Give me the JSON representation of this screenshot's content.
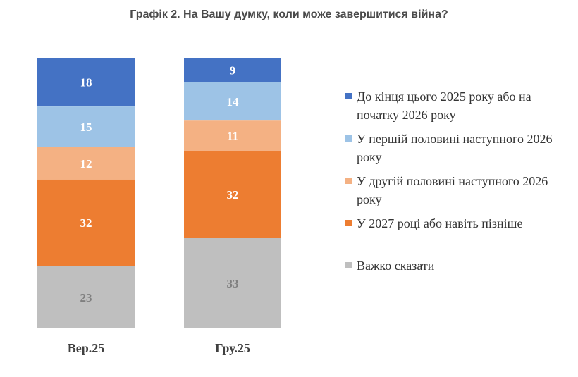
{
  "title": "Графік 2. На Вашу думку, коли може завершитися війна?",
  "chart_data": {
    "type": "bar",
    "stacked": true,
    "categories": [
      "Вер.25",
      "Гру.25"
    ],
    "series": [
      {
        "name": "До кінця цього 2025 року або на початку 2026 року",
        "values": [
          18,
          9
        ],
        "color": "#4472c4",
        "label_color": "#ffffff"
      },
      {
        "name": "У першій половині наступного 2026 року",
        "values": [
          15,
          14
        ],
        "color": "#9dc3e6",
        "label_color": "#ffffff"
      },
      {
        "name": "У другій половині наступного 2026 року",
        "values": [
          12,
          11
        ],
        "color": "#f4b183",
        "label_color": "#ffffff"
      },
      {
        "name": "У 2027 році або навіть пізніше",
        "values": [
          32,
          32
        ],
        "color": "#ed7d31",
        "label_color": "#ffffff"
      },
      {
        "name": "Важко сказати",
        "values": [
          23,
          33
        ],
        "color": "#bfbfbf",
        "label_color": "#7f7f7f"
      }
    ],
    "legend_position": "right",
    "grid": false
  }
}
